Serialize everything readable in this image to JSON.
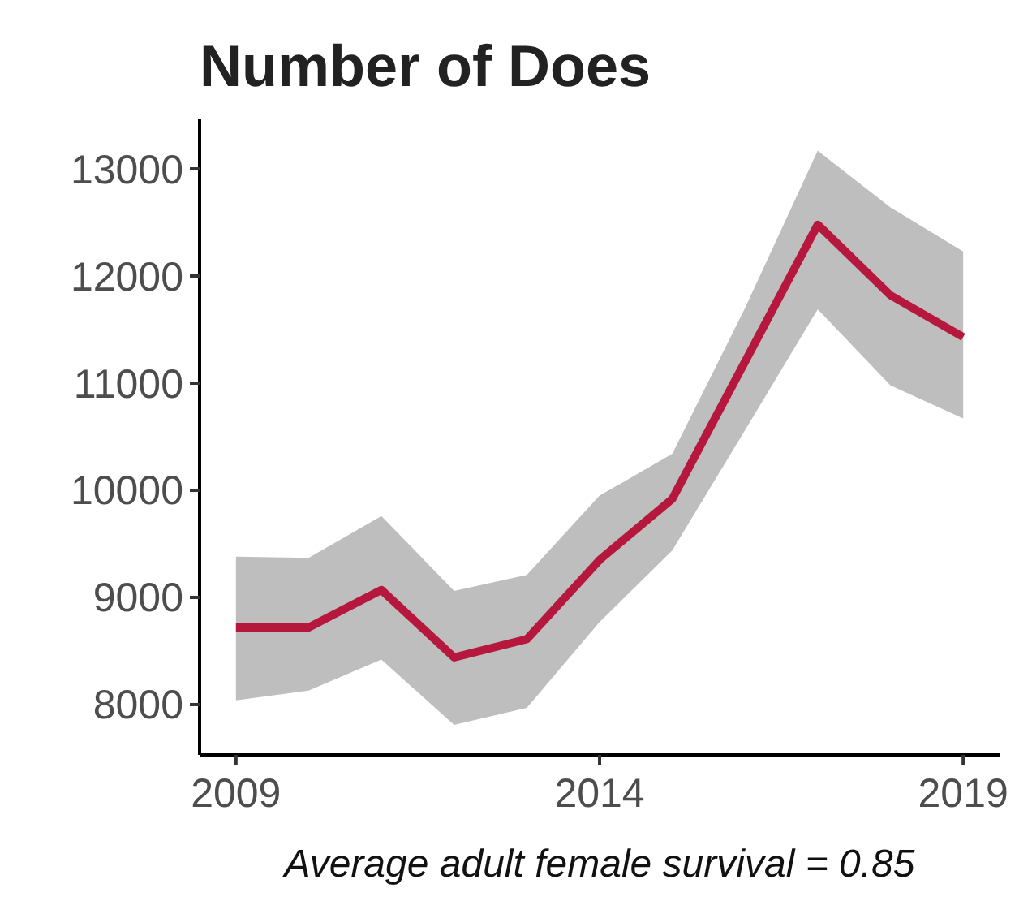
{
  "chart_data": {
    "type": "line",
    "title": "Number of Does",
    "x": [
      2009,
      2010,
      2011,
      2012,
      2013,
      2014,
      2015,
      2016,
      2017,
      2018,
      2019
    ],
    "series": [
      {
        "color": "#b5173d",
        "values": [
          8720,
          8720,
          9070,
          8440,
          8610,
          9350,
          9920,
          11200,
          12480,
          11820,
          11430
        ],
        "lower": [
          8040,
          8130,
          8420,
          7810,
          7970,
          8770,
          9440,
          10560,
          11690,
          10980,
          10670
        ],
        "upper": [
          9380,
          9370,
          9760,
          9060,
          9210,
          9950,
          10340,
          11700,
          13170,
          12640,
          12230
        ]
      }
    ],
    "xlim": [
      2008.5,
      2019.5
    ],
    "xticks": [
      2009,
      2014,
      2019
    ],
    "ylim": [
      7530,
      13470
    ],
    "yticks": [
      8000,
      9000,
      10000,
      11000,
      12000,
      13000
    ],
    "grid": false,
    "line_style": "solid",
    "marker": "none",
    "annotations": [
      "Average adult female survival = 0.85"
    ]
  }
}
